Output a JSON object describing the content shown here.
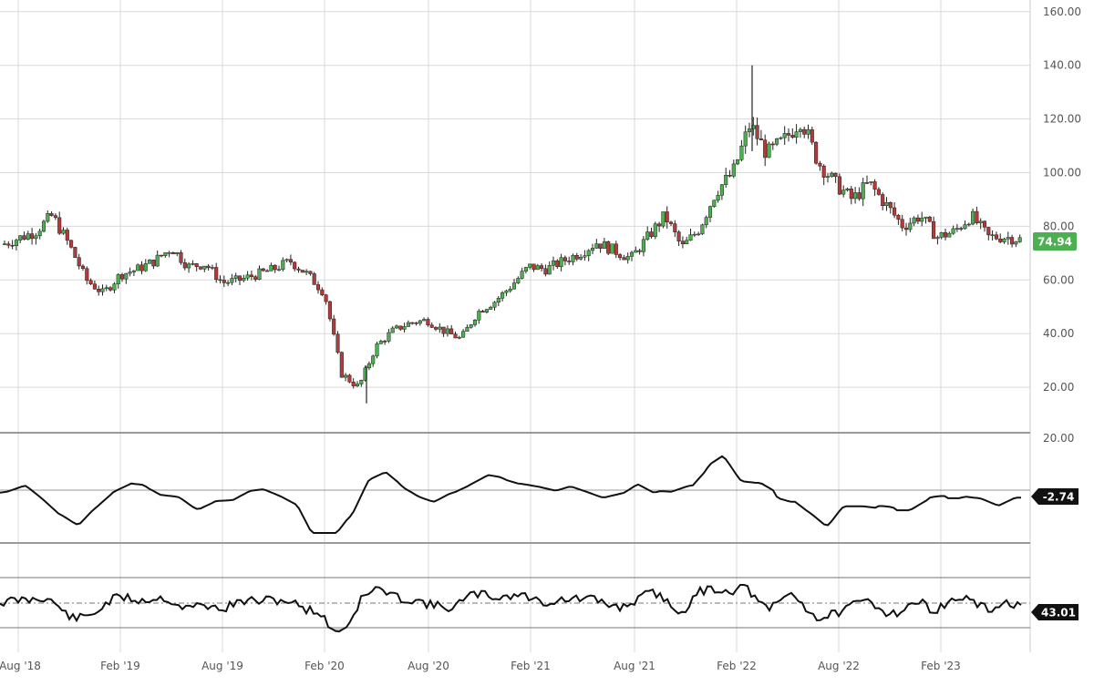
{
  "chart_data": [
    {
      "type": "candlestick",
      "panel": "price",
      "y_ticks": [
        "20.00",
        "40.00",
        "60.00",
        "80.00",
        "100.00",
        "120.00",
        "140.00",
        "160.00"
      ],
      "ylim": [
        0,
        160
      ],
      "grid": true,
      "last_value_label": "74.94",
      "last_value_color": "#4caf50",
      "up_color": "#4caf50",
      "down_color": "#b23a3a",
      "series_close": [
        {
          "date": "2018-07",
          "value": 73
        },
        {
          "date": "2018-09",
          "value": 78
        },
        {
          "date": "2018-10",
          "value": 84
        },
        {
          "date": "2018-11",
          "value": 73
        },
        {
          "date": "2018-12",
          "value": 60
        },
        {
          "date": "2019-01",
          "value": 55
        },
        {
          "date": "2019-02",
          "value": 62
        },
        {
          "date": "2019-03",
          "value": 64
        },
        {
          "date": "2019-04",
          "value": 67
        },
        {
          "date": "2019-05",
          "value": 72
        },
        {
          "date": "2019-06",
          "value": 65
        },
        {
          "date": "2019-07",
          "value": 66
        },
        {
          "date": "2019-08",
          "value": 59
        },
        {
          "date": "2019-09",
          "value": 60
        },
        {
          "date": "2019-10",
          "value": 62
        },
        {
          "date": "2019-11",
          "value": 64
        },
        {
          "date": "2019-12",
          "value": 67
        },
        {
          "date": "2020-01",
          "value": 62
        },
        {
          "date": "2020-02",
          "value": 55
        },
        {
          "date": "2020-03",
          "value": 25
        },
        {
          "date": "2020-04",
          "value": 20
        },
        {
          "date": "2020-05",
          "value": 35
        },
        {
          "date": "2020-06",
          "value": 41
        },
        {
          "date": "2020-07",
          "value": 44
        },
        {
          "date": "2020-08",
          "value": 45
        },
        {
          "date": "2020-09",
          "value": 41
        },
        {
          "date": "2020-10",
          "value": 38
        },
        {
          "date": "2020-11",
          "value": 48
        },
        {
          "date": "2020-12",
          "value": 52
        },
        {
          "date": "2021-01",
          "value": 58
        },
        {
          "date": "2021-02",
          "value": 65
        },
        {
          "date": "2021-03",
          "value": 64
        },
        {
          "date": "2021-04",
          "value": 67
        },
        {
          "date": "2021-05",
          "value": 70
        },
        {
          "date": "2021-06",
          "value": 74
        },
        {
          "date": "2021-07",
          "value": 71
        },
        {
          "date": "2021-08",
          "value": 68
        },
        {
          "date": "2021-09",
          "value": 76
        },
        {
          "date": "2021-10",
          "value": 84
        },
        {
          "date": "2021-11",
          "value": 72
        },
        {
          "date": "2021-12",
          "value": 79
        },
        {
          "date": "2022-01",
          "value": 93
        },
        {
          "date": "2022-02",
          "value": 100
        },
        {
          "date": "2022-03",
          "value": 118
        },
        {
          "date": "2022-04",
          "value": 107
        },
        {
          "date": "2022-05",
          "value": 112
        },
        {
          "date": "2022-06",
          "value": 120
        },
        {
          "date": "2022-07",
          "value": 104
        },
        {
          "date": "2022-08",
          "value": 96
        },
        {
          "date": "2022-09",
          "value": 90
        },
        {
          "date": "2022-10",
          "value": 96
        },
        {
          "date": "2022-11",
          "value": 88
        },
        {
          "date": "2022-12",
          "value": 80
        },
        {
          "date": "2023-01",
          "value": 84
        },
        {
          "date": "2023-02",
          "value": 76
        },
        {
          "date": "2023-03",
          "value": 78
        },
        {
          "date": "2023-04",
          "value": 84
        },
        {
          "date": "2023-05",
          "value": 76
        },
        {
          "date": "2023-06",
          "value": 76
        },
        {
          "date": "2023-07",
          "value": 74.94
        }
      ]
    },
    {
      "type": "line",
      "panel": "oscillator",
      "y_ticks": [
        "20.00"
      ],
      "last_value_label": "-2.74",
      "last_value_color": "#111111"
    },
    {
      "type": "line",
      "panel": "rsi",
      "last_value_label": "43.01",
      "last_value_color": "#111111"
    }
  ],
  "x_ticks": [
    "Aug '18",
    "Feb '19",
    "Aug '19",
    "Feb '20",
    "Aug '20",
    "Feb '21",
    "Aug '21",
    "Feb '22",
    "Aug '22",
    "Feb '23"
  ]
}
